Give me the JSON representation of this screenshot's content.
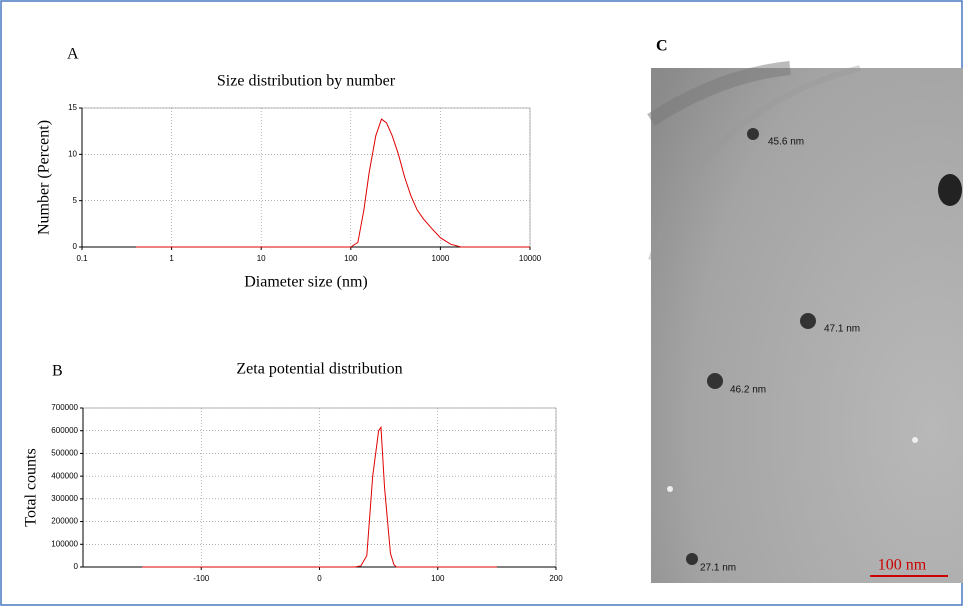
{
  "chart_data": [
    {
      "type": "line",
      "panel_label": "A",
      "title": "Size distribution by number",
      "x_label": "Diameter size (nm)",
      "y_label": "Number (Percent)",
      "xscale": "log",
      "xlim": [
        0.1,
        10000
      ],
      "xticks": [
        0.1,
        1,
        10,
        100,
        1000,
        10000
      ],
      "ylim": [
        0,
        15
      ],
      "yticks": [
        0,
        5,
        10,
        15
      ],
      "grid": true,
      "color": "#e00000",
      "x": [
        0.4,
        1,
        3,
        10,
        30,
        100,
        120,
        140,
        160,
        190,
        220,
        250,
        290,
        340,
        400,
        470,
        550,
        650,
        800,
        1000,
        1300,
        1700,
        3000,
        10000
      ],
      "values": [
        0,
        0,
        0,
        0,
        0,
        0,
        0.5,
        4,
        8,
        12,
        13.8,
        13.4,
        12,
        10,
        7.5,
        5.5,
        4,
        3,
        2,
        1,
        0.3,
        0,
        0,
        0
      ]
    },
    {
      "type": "line",
      "panel_label": "B",
      "title": "Zeta potential distribution",
      "y_label": "Total counts",
      "xlim": [
        -200,
        200
      ],
      "xticks": [
        -100,
        0,
        100,
        200
      ],
      "ylim": [
        0,
        700000
      ],
      "yticks": [
        0,
        100000,
        200000,
        300000,
        400000,
        500000,
        600000,
        700000
      ],
      "grid": true,
      "color": "#e00000",
      "x": [
        -150,
        0,
        30,
        35,
        40,
        45,
        50,
        52,
        55,
        60,
        63,
        65,
        150
      ],
      "values": [
        0,
        0,
        0,
        5000,
        50000,
        400000,
        600000,
        615000,
        350000,
        60000,
        10000,
        0,
        0
      ]
    }
  ],
  "image": {
    "panel_label": "C",
    "labels": [
      "45.6 nm",
      "47.1 nm",
      "46.2 nm",
      "27.1 nm"
    ],
    "scale_bar": "100 nm"
  }
}
